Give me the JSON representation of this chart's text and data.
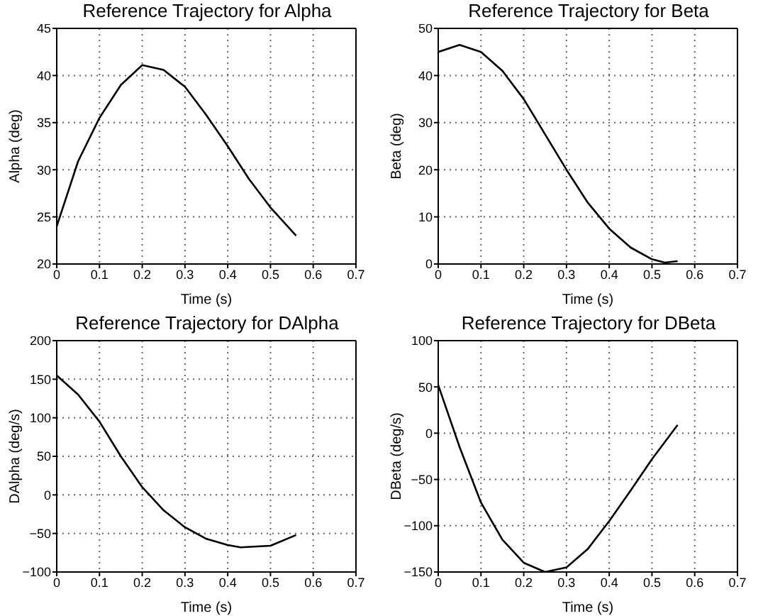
{
  "chart_data": [
    {
      "type": "line",
      "title": "Reference Trajectory for Alpha",
      "xlabel": "Time (s)",
      "ylabel": "Alpha (deg)",
      "x": [
        0,
        0.05,
        0.1,
        0.15,
        0.2,
        0.25,
        0.3,
        0.35,
        0.4,
        0.45,
        0.5,
        0.56
      ],
      "series": [
        {
          "color": "#000000",
          "values": [
            24,
            30.9,
            35.5,
            39,
            41.1,
            40.6,
            38.8,
            35.8,
            32.5,
            29,
            26,
            23
          ]
        }
      ],
      "xlim": [
        0,
        0.7
      ],
      "xticks": [
        0,
        0.1,
        0.2,
        0.3,
        0.4,
        0.5,
        0.6,
        0.7
      ],
      "ylim": [
        20,
        45
      ],
      "yticks": [
        20,
        25,
        30,
        35,
        40,
        45
      ],
      "grid": true,
      "marker": "none",
      "line_style": "solid"
    },
    {
      "type": "line",
      "title": "Reference Trajectory for Beta",
      "xlabel": "Time (s)",
      "ylabel": "Beta (deg)",
      "x": [
        0,
        0.05,
        0.1,
        0.15,
        0.2,
        0.25,
        0.3,
        0.35,
        0.4,
        0.45,
        0.5,
        0.53,
        0.56
      ],
      "series": [
        {
          "color": "#000000",
          "values": [
            45,
            46.5,
            45,
            41,
            35,
            27.5,
            20,
            13,
            7.5,
            3.5,
            1,
            0.3,
            0.6
          ]
        }
      ],
      "xlim": [
        0,
        0.7
      ],
      "xticks": [
        0,
        0.1,
        0.2,
        0.3,
        0.4,
        0.5,
        0.6,
        0.7
      ],
      "ylim": [
        0,
        50
      ],
      "yticks": [
        0,
        10,
        20,
        30,
        40,
        50
      ],
      "grid": true,
      "marker": "none",
      "line_style": "solid"
    },
    {
      "type": "line",
      "title": "Reference Trajectory for DAlpha",
      "xlabel": "Time (s)",
      "ylabel": "DAlpha (deg/s)",
      "x": [
        0,
        0.05,
        0.1,
        0.15,
        0.2,
        0.25,
        0.3,
        0.35,
        0.4,
        0.43,
        0.5,
        0.56
      ],
      "series": [
        {
          "color": "#000000",
          "values": [
            155,
            130,
            95,
            50,
            10,
            -20,
            -42,
            -57,
            -65,
            -68,
            -66,
            -52
          ]
        }
      ],
      "xlim": [
        0,
        0.7
      ],
      "xticks": [
        0,
        0.1,
        0.2,
        0.3,
        0.4,
        0.5,
        0.6,
        0.7
      ],
      "ylim": [
        -100,
        200
      ],
      "yticks": [
        -100,
        -50,
        0,
        50,
        100,
        150,
        200
      ],
      "grid": true,
      "marker": "none",
      "line_style": "solid"
    },
    {
      "type": "line",
      "title": "Reference Trajectory for DBeta",
      "xlabel": "Time (s)",
      "ylabel": "DBeta (deg/s)",
      "x": [
        0,
        0.05,
        0.1,
        0.15,
        0.2,
        0.25,
        0.3,
        0.35,
        0.4,
        0.45,
        0.5,
        0.56
      ],
      "series": [
        {
          "color": "#000000",
          "values": [
            52,
            -15,
            -75,
            -115,
            -140,
            -150,
            -145,
            -125,
            -95,
            -62,
            -28,
            9
          ]
        }
      ],
      "xlim": [
        0,
        0.7
      ],
      "xticks": [
        0,
        0.1,
        0.2,
        0.3,
        0.4,
        0.5,
        0.6,
        0.7
      ],
      "ylim": [
        -150,
        100
      ],
      "yticks": [
        -150,
        -100,
        -50,
        0,
        50,
        100
      ],
      "grid": true,
      "marker": "none",
      "line_style": "solid"
    }
  ]
}
